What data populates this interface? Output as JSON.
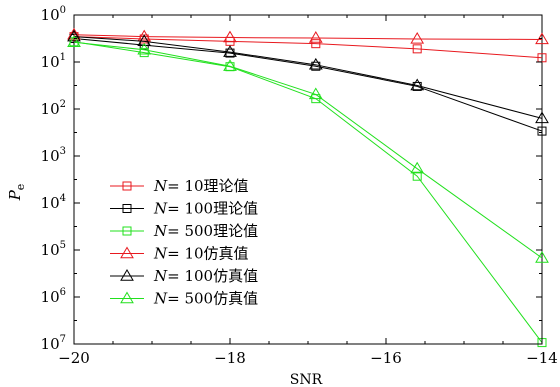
{
  "chart_data": {
    "type": "line",
    "title": "",
    "xlabel": "SNR",
    "ylabel": "P",
    "ylabel_sub": "e",
    "xlim": [
      -20,
      -14
    ],
    "ylim_log": [
      0,
      7
    ],
    "y_axis_reversed": true,
    "x_ticks": [
      {
        "v": -20,
        "label": "−20"
      },
      {
        "v": -18,
        "label": "−18"
      },
      {
        "v": -16,
        "label": "−16"
      },
      {
        "v": -14,
        "label": "−14"
      }
    ],
    "y_ticks": [
      {
        "v": 0,
        "base": "10",
        "exp": "0"
      },
      {
        "v": 1,
        "base": "10",
        "exp": "1"
      },
      {
        "v": 2,
        "base": "10",
        "exp": "2"
      },
      {
        "v": 3,
        "base": "10",
        "exp": "3"
      },
      {
        "v": 4,
        "base": "10",
        "exp": "4"
      },
      {
        "v": 5,
        "base": "10",
        "exp": "5"
      },
      {
        "v": 6,
        "base": "10",
        "exp": "6"
      },
      {
        "v": 7,
        "base": "10",
        "exp": "7"
      }
    ],
    "x": [
      -20,
      -19.1,
      -18,
      -16.9,
      -15.6,
      -14
    ],
    "series": [
      {
        "name": "N = 10理论值",
        "label_N": "N",
        "label_val": "= 10理论值",
        "color": "#e8191f",
        "marker": "square",
        "values": [
          0.46,
          0.51,
          0.56,
          0.61,
          0.72,
          0.91
        ]
      },
      {
        "name": "N = 100理论值",
        "label_N": "N",
        "label_val": "= 100理论值",
        "color": "#000000",
        "marker": "square",
        "values": [
          0.5,
          0.64,
          0.81,
          1.09,
          1.52,
          2.47
        ]
      },
      {
        "name": "N = 500理论值",
        "label_N": "N",
        "label_val": "= 500理论值",
        "color": "#22e01e",
        "marker": "square",
        "values": [
          0.57,
          0.8,
          1.1,
          1.78,
          3.43,
          6.97
        ]
      },
      {
        "name": "N = 10仿真值",
        "label_N": "N",
        "label_val": "= 10仿真值",
        "color": "#e8191f",
        "marker": "triangle",
        "values": [
          0.42,
          0.46,
          0.48,
          0.49,
          0.51,
          0.52
        ]
      },
      {
        "name": "N = 100仿真值",
        "label_N": "N",
        "label_val": "= 100仿真值",
        "color": "#000000",
        "marker": "triangle",
        "values": [
          0.46,
          0.56,
          0.79,
          1.06,
          1.5,
          2.2
        ]
      },
      {
        "name": "N = 500仿真值",
        "label_N": "N",
        "label_val": "= 500仿真值",
        "color": "#22e01e",
        "marker": "triangle",
        "values": [
          0.58,
          0.74,
          1.09,
          1.69,
          3.27,
          5.17
        ]
      }
    ],
    "grid": false,
    "legend_position": "bottom-left"
  }
}
